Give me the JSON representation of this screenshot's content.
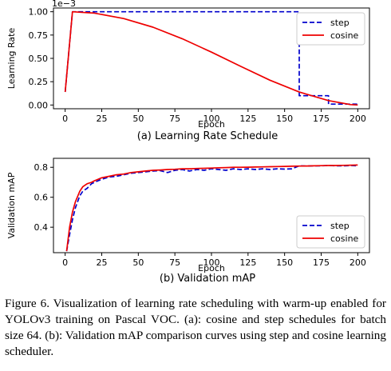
{
  "chart_data": [
    {
      "type": "line",
      "caption": "(a) Learning Rate Schedule",
      "xlabel": "Epoch",
      "ylabel": "Learning Rate",
      "scale_label": "1e−3",
      "xlim": [
        -8,
        208
      ],
      "ylim": [
        -0.04,
        1.04
      ],
      "xticks": [
        0,
        25,
        50,
        75,
        100,
        125,
        150,
        175,
        200
      ],
      "yticks": [
        0.0,
        0.25,
        0.5,
        0.75,
        1.0
      ],
      "ytick_labels": [
        "0.00",
        "0.25",
        "0.50",
        "0.75",
        "1.00"
      ],
      "grid": false,
      "legend_position": "top-right",
      "series": [
        {
          "name": "step",
          "style": "dashed",
          "color": "#0000cc",
          "x": [
            0,
            5,
            160,
            160,
            180,
            180,
            200
          ],
          "y": [
            0.14,
            1.0,
            1.0,
            0.1,
            0.1,
            0.01,
            0.01
          ]
        },
        {
          "name": "cosine",
          "style": "solid",
          "color": "#ee0000",
          "x": [
            0,
            5,
            20,
            40,
            60,
            80,
            100,
            120,
            140,
            160,
            180,
            195,
            200
          ],
          "y": [
            0.14,
            1.0,
            0.985,
            0.927,
            0.834,
            0.711,
            0.567,
            0.414,
            0.266,
            0.139,
            0.047,
            0.005,
            0.0
          ]
        }
      ]
    },
    {
      "type": "line",
      "caption": "(b) Validation mAP",
      "xlabel": "Epoch",
      "ylabel": "Validation mAP",
      "xlim": [
        -8,
        208
      ],
      "ylim": [
        0.23,
        0.86
      ],
      "xticks": [
        0,
        25,
        50,
        75,
        100,
        125,
        150,
        175,
        200
      ],
      "yticks": [
        0.4,
        0.6,
        0.8
      ],
      "ytick_labels": [
        "0.4",
        "0.6",
        "0.8"
      ],
      "grid": false,
      "legend_position": "bottom-right",
      "series": [
        {
          "name": "step",
          "style": "dashed",
          "color": "#0000cc",
          "x": [
            1,
            3,
            5,
            7,
            10,
            12,
            15,
            18,
            20,
            25,
            30,
            35,
            40,
            45,
            50,
            55,
            60,
            65,
            70,
            75,
            80,
            85,
            90,
            95,
            100,
            105,
            110,
            115,
            120,
            125,
            130,
            135,
            140,
            145,
            150,
            155,
            160,
            165,
            170,
            175,
            180,
            185,
            190,
            195,
            200
          ],
          "y": [
            0.24,
            0.35,
            0.45,
            0.53,
            0.61,
            0.64,
            0.66,
            0.69,
            0.7,
            0.72,
            0.735,
            0.74,
            0.75,
            0.76,
            0.765,
            0.77,
            0.775,
            0.778,
            0.765,
            0.78,
            0.785,
            0.775,
            0.785,
            0.78,
            0.79,
            0.785,
            0.78,
            0.79,
            0.785,
            0.79,
            0.785,
            0.79,
            0.785,
            0.79,
            0.788,
            0.79,
            0.81,
            0.808,
            0.81,
            0.81,
            0.812,
            0.81,
            0.81,
            0.812,
            0.81
          ]
        },
        {
          "name": "cosine",
          "style": "solid",
          "color": "#ee0000",
          "x": [
            1,
            3,
            5,
            7,
            10,
            12,
            15,
            18,
            20,
            25,
            30,
            35,
            40,
            45,
            50,
            55,
            60,
            65,
            70,
            75,
            80,
            85,
            90,
            95,
            100,
            105,
            110,
            115,
            120,
            125,
            130,
            135,
            140,
            145,
            150,
            155,
            160,
            165,
            170,
            175,
            180,
            185,
            190,
            195,
            200
          ],
          "y": [
            0.24,
            0.4,
            0.5,
            0.57,
            0.64,
            0.67,
            0.69,
            0.7,
            0.71,
            0.73,
            0.74,
            0.75,
            0.755,
            0.765,
            0.77,
            0.775,
            0.78,
            0.782,
            0.785,
            0.787,
            0.79,
            0.79,
            0.792,
            0.793,
            0.795,
            0.797,
            0.798,
            0.8,
            0.8,
            0.801,
            0.802,
            0.803,
            0.804,
            0.805,
            0.806,
            0.807,
            0.808,
            0.809,
            0.81,
            0.811,
            0.812,
            0.812,
            0.813,
            0.814,
            0.815
          ]
        }
      ]
    }
  ],
  "figure_caption": "Figure 6. Visualization of learning rate scheduling with warm-up enabled for YOLOv3 training on Pascal VOC. (a): cosine and step schedules for batch size 64. (b): Validation mAP comparison curves using step and cosine learning scheduler."
}
